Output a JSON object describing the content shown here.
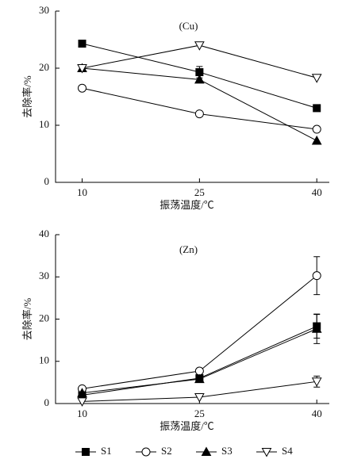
{
  "chart_data": [
    {
      "type": "line",
      "title": "(Cu)",
      "xlabel": "振荡温度/℃",
      "ylabel": "去除率/%",
      "x": [
        10,
        25,
        40
      ],
      "xlim": [
        6.6,
        41.6
      ],
      "xticks": [
        10,
        25,
        40
      ],
      "ylim": [
        0,
        30
      ],
      "yticks": [
        0,
        10,
        20,
        30
      ],
      "series": [
        {
          "name": "S1",
          "color": "#000000",
          "marker": "square",
          "filled": true,
          "values": [
            24.3,
            19.3,
            13.0
          ],
          "errors": [
            null,
            1.0,
            null
          ]
        },
        {
          "name": "S2",
          "color": "#000000",
          "marker": "circle",
          "filled": false,
          "values": [
            16.5,
            12.0,
            9.3
          ]
        },
        {
          "name": "S3",
          "color": "#000000",
          "marker": "triangle-up",
          "filled": true,
          "values": [
            20.0,
            18.0,
            7.3
          ]
        },
        {
          "name": "S4",
          "color": "#000000",
          "marker": "triangle-down",
          "filled": false,
          "values": [
            20.0,
            24.0,
            18.3
          ]
        }
      ]
    },
    {
      "type": "line",
      "title": "(Zn)",
      "xlabel": "振荡温度/℃",
      "ylabel": "去除率/%",
      "x": [
        10,
        25,
        40
      ],
      "xlim": [
        6.6,
        41.6
      ],
      "xticks": [
        10,
        25,
        40
      ],
      "ylim": [
        0,
        40
      ],
      "yticks": [
        0,
        10,
        20,
        30,
        40
      ],
      "series": [
        {
          "color": "#000000",
          "marker": "square",
          "filled": true,
          "values": [
            2.0,
            6.0,
            18.3
          ],
          "errors": [
            null,
            null,
            2.8
          ]
        },
        {
          "color": "#000000",
          "marker": "circle",
          "filled": false,
          "values": [
            3.5,
            7.7,
            30.3
          ],
          "errors": [
            null,
            null,
            4.5
          ]
        },
        {
          "color": "#000000",
          "marker": "triangle-up",
          "filled": true,
          "values": [
            2.5,
            5.8,
            17.7
          ],
          "errors": [
            null,
            null,
            3.5
          ]
        },
        {
          "color": "#000000",
          "marker": "triangle-down",
          "filled": false,
          "values": [
            0.5,
            1.5,
            5.2
          ],
          "errors": [
            null,
            null,
            1.3
          ]
        }
      ]
    }
  ]
}
